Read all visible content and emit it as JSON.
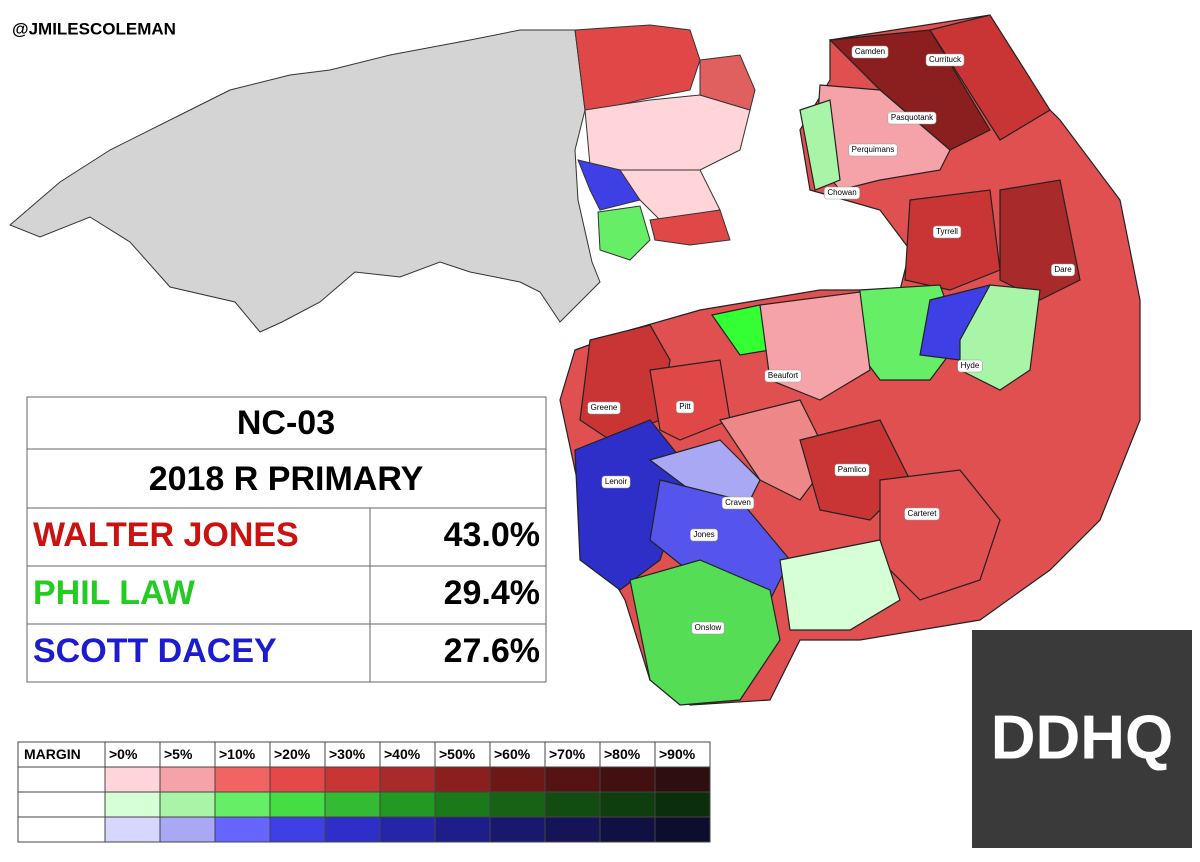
{
  "handle": "@JMILESCOLEMAN",
  "results": {
    "title": "NC-03",
    "subtitle": "2018 R PRIMARY",
    "candidates": [
      {
        "name": "WALTER JONES",
        "share": "43.0%",
        "color": "#cc1111"
      },
      {
        "name": "PHIL LAW",
        "share": "29.4%",
        "color": "#22cc22"
      },
      {
        "name": "SCOTT DACEY",
        "share": "27.6%",
        "color": "#1c1ccc"
      }
    ]
  },
  "counties": [
    "Camden",
    "Currituck",
    "Pasquotank",
    "Perquimans",
    "Chowan",
    "Tyrrell",
    "Dare",
    "Hyde",
    "Beaufort",
    "Pitt",
    "Greene",
    "Lenoir",
    "Craven",
    "Pamlico",
    "Jones",
    "Carteret",
    "Onslow"
  ],
  "legend": {
    "header": "MARGIN",
    "thresholds": [
      ">0%",
      ">5%",
      ">10%",
      ">20%",
      ">30%",
      ">40%",
      ">50%",
      ">60%",
      ">70%",
      ">80%",
      ">90%"
    ],
    "rows": [
      [
        "#ffd5da",
        "#f5a3a9",
        "#f26464",
        "#e54848",
        "#c93535",
        "#a82a2a",
        "#8b1e1e",
        "#6d1717",
        "#561313",
        "#421010",
        "#2e0e0e"
      ],
      [
        "#d6ffd6",
        "#a8f5a8",
        "#66ee66",
        "#44dd44",
        "#33bb33",
        "#229922",
        "#1a7a1a",
        "#166316",
        "#114d11",
        "#0e3e0e",
        "#0b2e0b"
      ],
      [
        "#d6d6ff",
        "#a8a8f5",
        "#6666ff",
        "#3f3fe6",
        "#2e2ec9",
        "#2525a8",
        "#1e1e8b",
        "#18186d",
        "#141456",
        "#101042",
        "#0d0d2e"
      ]
    ]
  },
  "logo": "DDHQ"
}
